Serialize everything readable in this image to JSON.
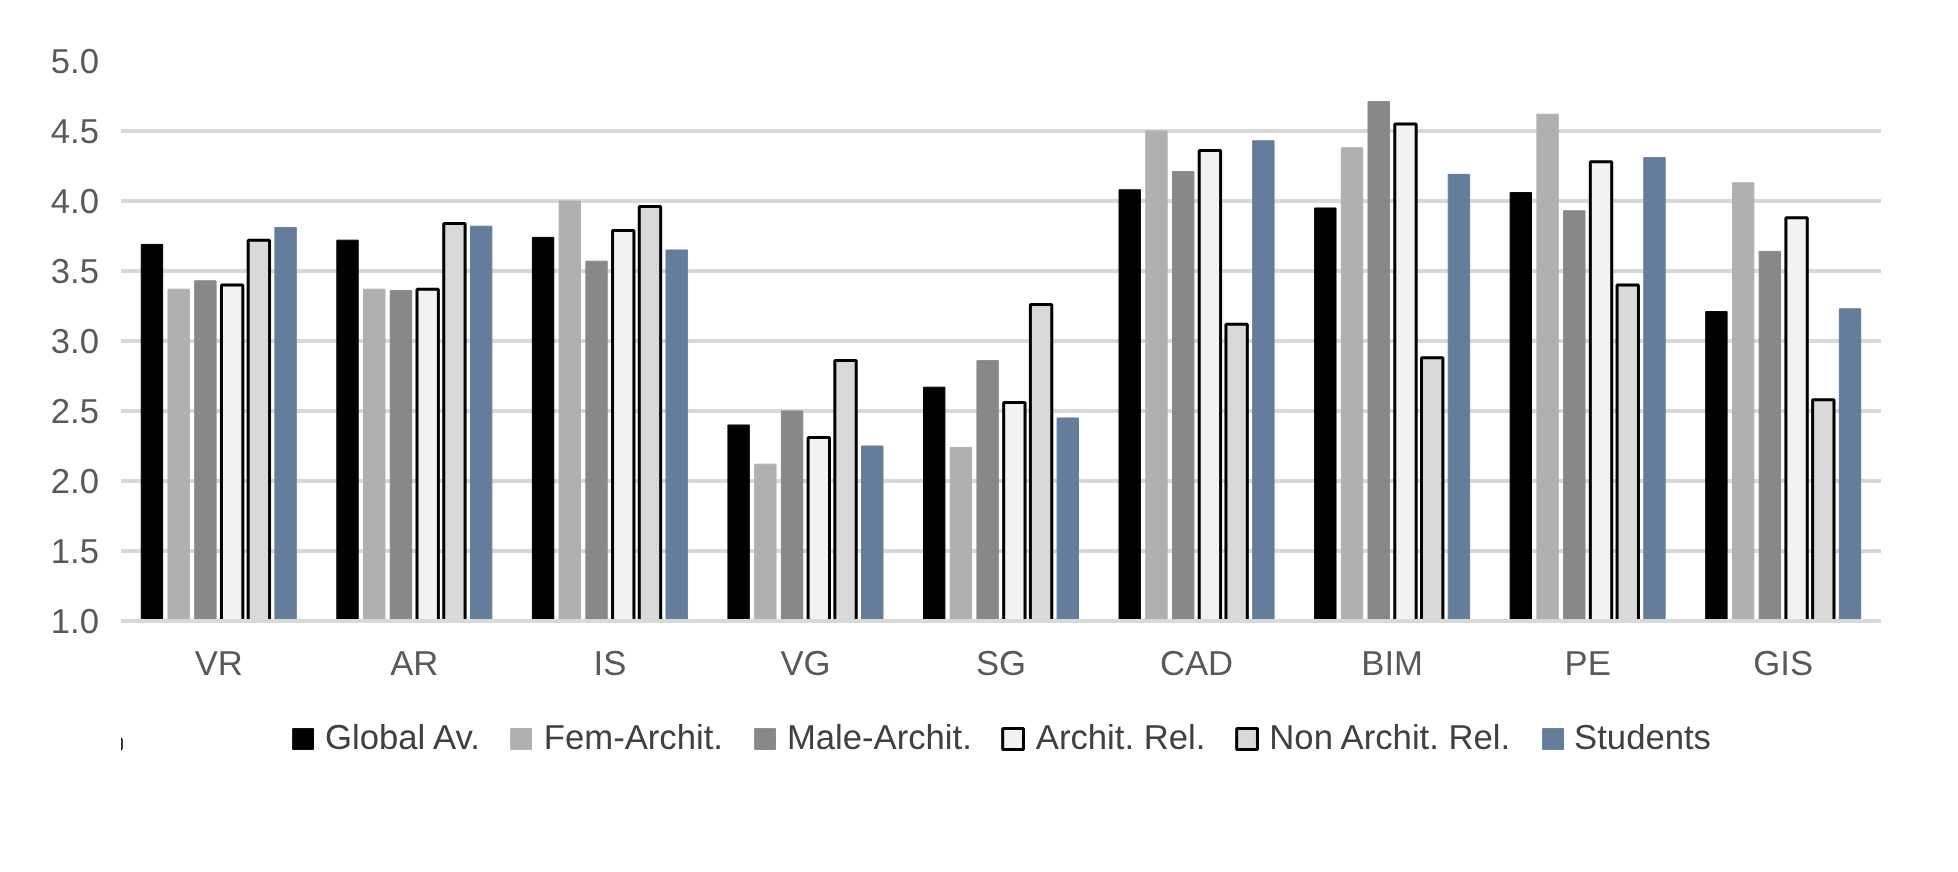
{
  "chart_data": {
    "type": "bar",
    "categories": [
      "VR",
      "AR",
      "IS",
      "VG",
      "SG",
      "CAD",
      "BIM",
      "PE",
      "GIS"
    ],
    "series": [
      {
        "name": "Global Av.",
        "color": "#000000",
        "values": [
          3.69,
          3.72,
          3.74,
          2.4,
          2.67,
          4.08,
          3.95,
          4.06,
          3.21
        ]
      },
      {
        "name": "Fem-Archit.",
        "color": "#b0b0b0",
        "values": [
          3.37,
          3.37,
          4.0,
          2.12,
          2.24,
          4.5,
          4.38,
          4.62,
          4.13
        ]
      },
      {
        "name": "Male-Archit.",
        "color": "#888888",
        "values": [
          3.43,
          3.36,
          3.57,
          2.5,
          2.86,
          4.21,
          4.71,
          3.93,
          3.64
        ]
      },
      {
        "name": "Archit. Rel.",
        "color": "#f2f2f2",
        "values": [
          3.4,
          3.37,
          3.79,
          2.31,
          2.56,
          4.36,
          4.55,
          4.28,
          3.88
        ]
      },
      {
        "name": "Non Archit. Rel.",
        "color": "#d9d9d9",
        "values": [
          3.72,
          3.84,
          3.96,
          2.86,
          3.26,
          3.12,
          2.88,
          3.4,
          2.58
        ]
      },
      {
        "name": "Students",
        "color": "#647d9b",
        "values": [
          3.81,
          3.82,
          3.65,
          2.25,
          2.45,
          4.43,
          4.19,
          4.31,
          3.23
        ]
      }
    ],
    "ylim": [
      1.0,
      5.0
    ],
    "yticks": [
      {
        "value": 1.0,
        "label": "1.0"
      },
      {
        "value": 1.5,
        "label": "1.5"
      },
      {
        "value": 2.0,
        "label": "2.0"
      },
      {
        "value": 2.5,
        "label": "2.5"
      },
      {
        "value": 3.0,
        "label": "3.0"
      },
      {
        "value": 3.5,
        "label": "3.5"
      },
      {
        "value": 4.0,
        "label": "4.0"
      },
      {
        "value": 4.5,
        "label": "4.5"
      },
      {
        "value": 5.0,
        "label": "5.0"
      }
    ],
    "grid": "y",
    "legend": "bottom"
  }
}
